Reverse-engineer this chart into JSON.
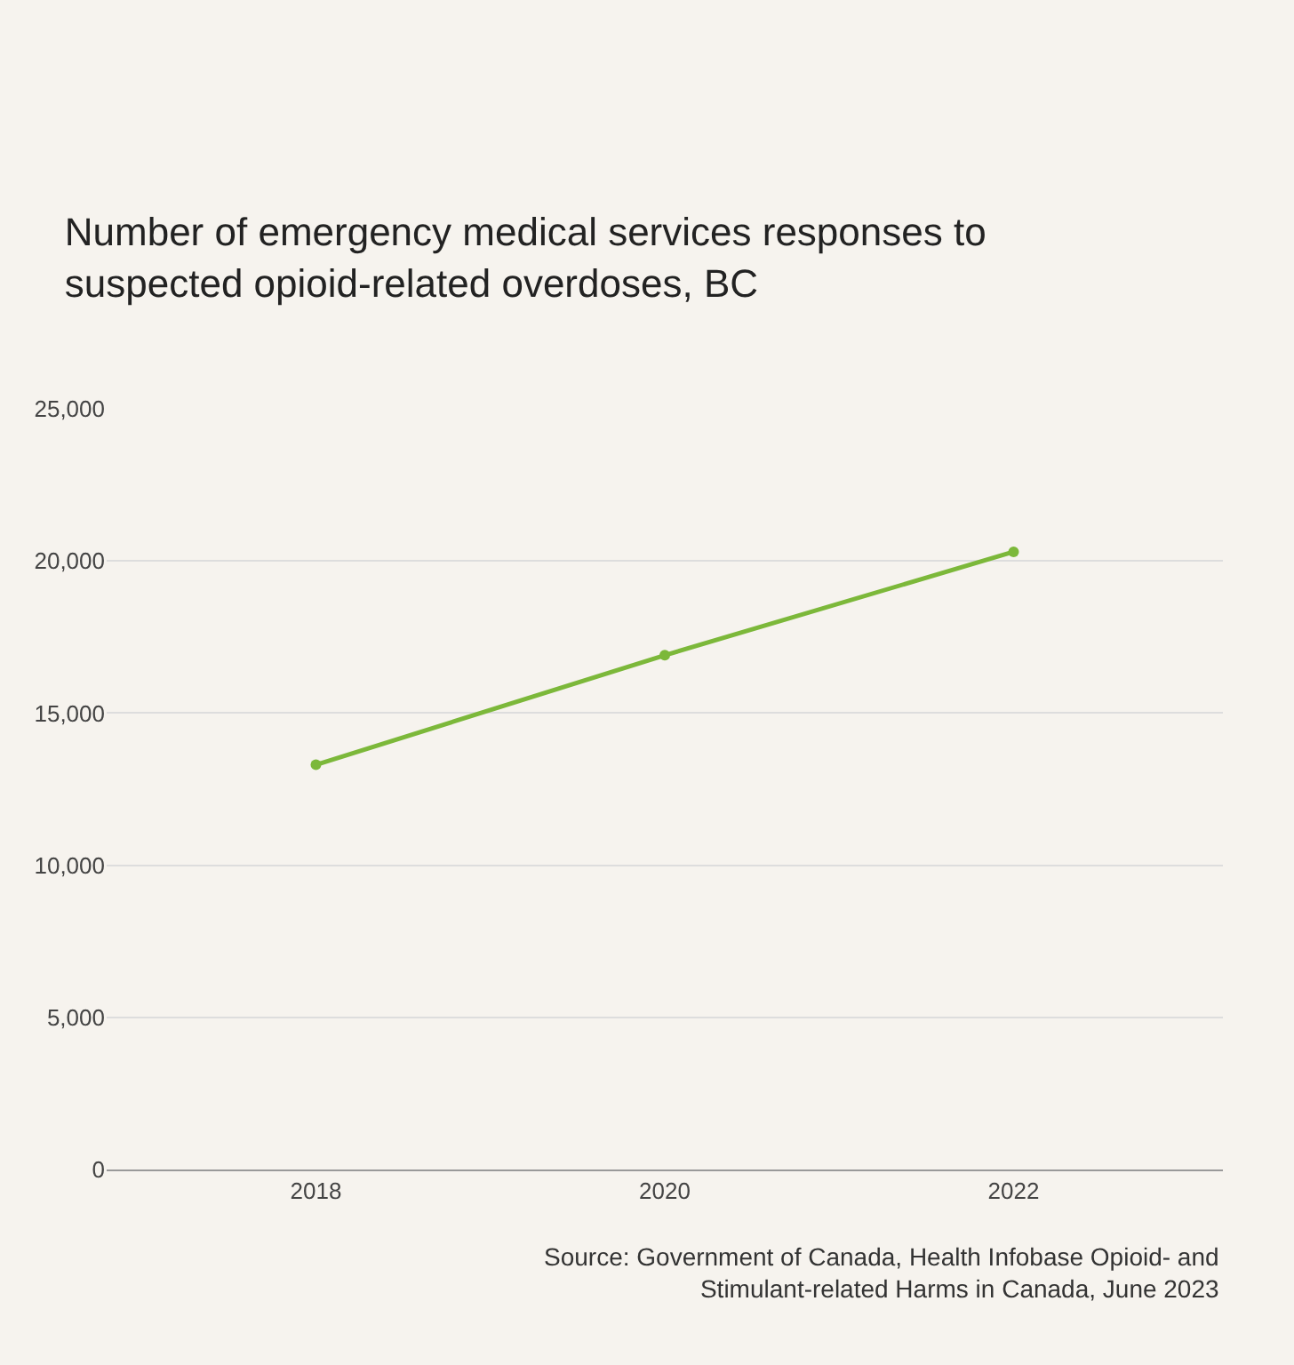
{
  "chart_data": {
    "type": "line",
    "title": "Number of emergency medical services responses to suspected opioid-related overdoses, BC",
    "categories": [
      "2018",
      "2020",
      "2022"
    ],
    "series": [
      {
        "color": "#7cb83a",
        "values": [
          13300,
          16900,
          20300
        ]
      }
    ],
    "ylim": [
      0,
      25000
    ],
    "yticks": [
      {
        "value": 0,
        "label": "0"
      },
      {
        "value": 5000,
        "label": "5,000"
      },
      {
        "value": 10000,
        "label": "10,000"
      },
      {
        "value": 15000,
        "label": "15,000"
      },
      {
        "value": 20000,
        "label": "20,000"
      },
      {
        "value": 25000,
        "label": "25,000"
      }
    ],
    "grid": "y",
    "marker": "circle",
    "line_style": "solid",
    "annotations": [
      "Source: Government of Canada, Health Infobase Opioid- and Stimulant-related Harms in Canada, June 2023"
    ]
  }
}
